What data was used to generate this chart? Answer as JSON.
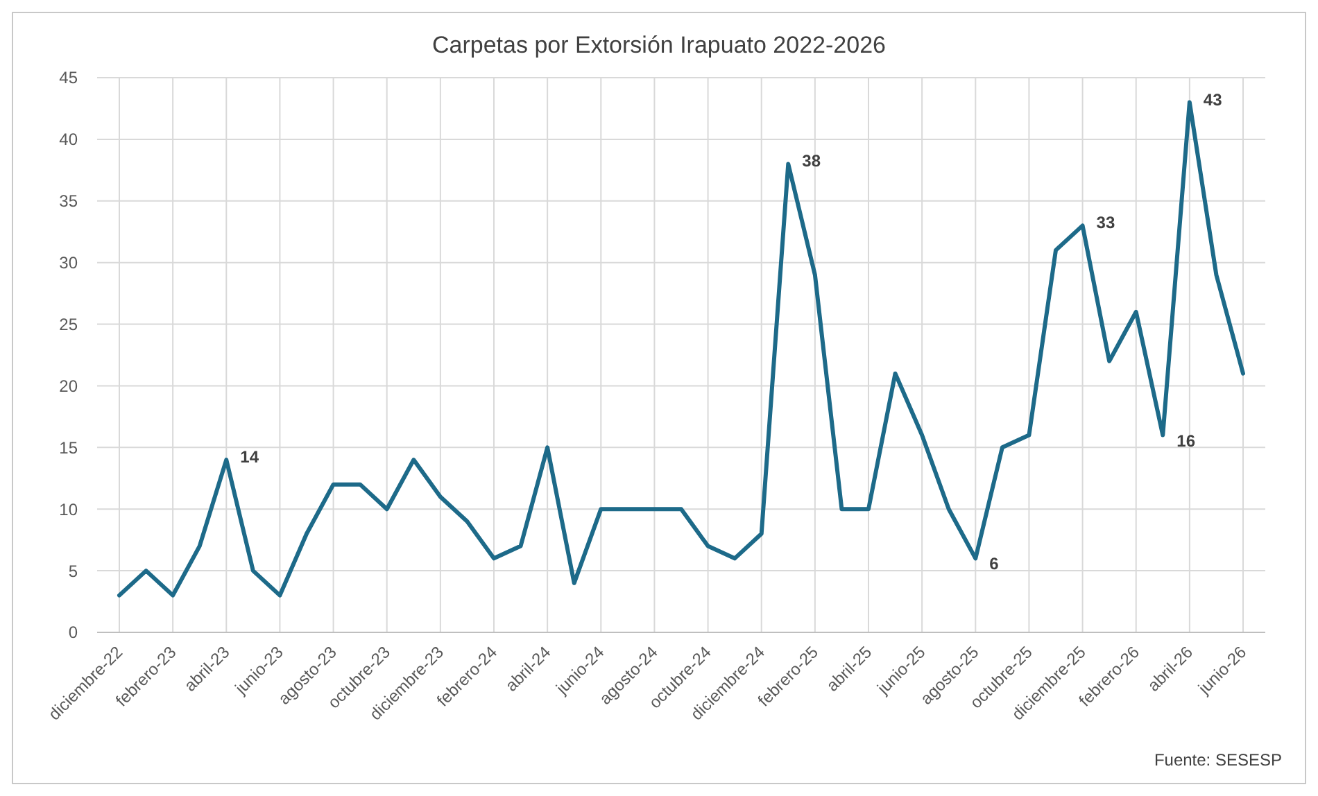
{
  "chart_data": {
    "type": "line",
    "title": "Carpetas por Extorsión Irapuato 2022-2026",
    "categories": [
      "diciembre-22",
      null,
      "febrero-23",
      null,
      "abril-23",
      null,
      "junio-23",
      null,
      "agosto-23",
      null,
      "octubre-23",
      null,
      "diciembre-23",
      null,
      "febrero-24",
      null,
      "abril-24",
      null,
      "junio-24",
      null,
      "agosto-24",
      null,
      "octubre-24",
      null,
      "diciembre-24",
      null,
      "febrero-25",
      null,
      "abril-25",
      null,
      "junio-25",
      null,
      "agosto-25",
      null,
      "octubre-25",
      null,
      "diciembre-25",
      null,
      "febrero-26",
      null,
      "abril-26",
      null,
      "junio-26"
    ],
    "series": [
      {
        "color": "#1d6a89",
        "values": [
          3,
          5,
          3,
          7,
          14,
          5,
          3,
          8,
          12,
          12,
          10,
          14,
          11,
          9,
          6,
          7,
          15,
          4,
          10,
          10,
          10,
          10,
          7,
          6,
          8,
          38,
          29,
          10,
          10,
          21,
          16,
          10,
          6,
          15,
          16,
          31,
          33,
          22,
          26,
          16,
          43,
          29,
          21
        ],
        "value_labels": [
          null,
          null,
          null,
          null,
          "14",
          null,
          null,
          null,
          null,
          null,
          null,
          null,
          null,
          null,
          null,
          null,
          null,
          null,
          null,
          null,
          null,
          null,
          null,
          null,
          null,
          "38",
          null,
          null,
          null,
          null,
          null,
          null,
          "6",
          null,
          null,
          null,
          "33",
          null,
          null,
          "16",
          "43",
          null,
          null
        ]
      }
    ],
    "ylim": [
      0,
      45
    ],
    "yticks": [
      0,
      5,
      10,
      15,
      20,
      25,
      30,
      35,
      40,
      45
    ],
    "grid": true,
    "marker": "none",
    "line_style": "solid",
    "annotations": [
      "Fuente: SESESP"
    ]
  }
}
